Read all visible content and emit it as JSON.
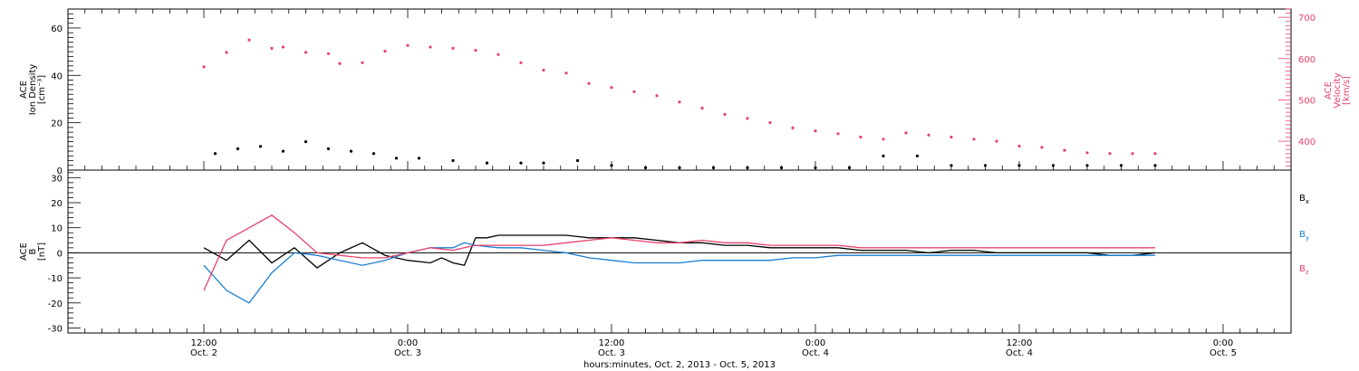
{
  "chart_data": [
    {
      "type": "scatter",
      "panel": "top",
      "ylabel_lines": [
        "ACE",
        "Ion Density",
        "[cm⁻³]"
      ],
      "ylim": [
        0,
        68
      ],
      "yticks": [
        "0",
        "20",
        "40",
        "60"
      ],
      "y2label_lines": [
        "ACE",
        "Velocity",
        "[km/s]"
      ],
      "y2lim": [
        330,
        720
      ],
      "y2ticks": [
        "400",
        "500",
        "600",
        "700"
      ],
      "series": [
        {
          "name": "Ion Density",
          "axis": "left",
          "color": "#000000",
          "x": [
            2,
            6,
            10,
            14,
            18,
            22,
            26,
            30,
            34,
            38,
            44,
            50,
            56,
            60,
            66,
            72,
            78,
            84,
            90,
            96,
            102,
            108,
            114,
            120,
            126,
            132,
            138,
            144,
            150,
            156,
            162,
            168
          ],
          "y": [
            7,
            9,
            10,
            8,
            12,
            9,
            8,
            7,
            5,
            5,
            4,
            3,
            3,
            3,
            4,
            2,
            1,
            1,
            1,
            1,
            1,
            1,
            1,
            6,
            6,
            2,
            2,
            2,
            2,
            2,
            2,
            2
          ]
        },
        {
          "name": "Velocity",
          "axis": "right",
          "color": "#e8426a",
          "x": [
            0,
            4,
            8,
            12,
            14,
            18,
            22,
            24,
            28,
            32,
            36,
            40,
            44,
            48,
            52,
            56,
            60,
            64,
            68,
            72,
            76,
            80,
            84,
            88,
            92,
            96,
            100,
            104,
            108,
            112,
            116,
            120,
            124,
            128,
            132,
            136,
            140,
            144,
            148,
            152,
            156,
            160,
            164,
            168
          ],
          "y": [
            580,
            615,
            645,
            625,
            628,
            615,
            612,
            588,
            590,
            618,
            632,
            628,
            625,
            620,
            610,
            590,
            572,
            565,
            540,
            530,
            520,
            510,
            495,
            480,
            465,
            455,
            445,
            432,
            425,
            418,
            410,
            405,
            420,
            415,
            410,
            405,
            400,
            388,
            385,
            378,
            372,
            370,
            370,
            370
          ]
        }
      ]
    },
    {
      "type": "line",
      "panel": "bottom",
      "ylabel_lines": [
        "ACE",
        "B",
        "[nT]"
      ],
      "ylim": [
        -32,
        33
      ],
      "yticks": [
        "-30",
        "-20",
        "-10",
        "0",
        "10",
        "20",
        "30"
      ],
      "zero_line": true,
      "series": [
        {
          "name": "Bx",
          "label": "B",
          "sub": "x",
          "color": "#000000",
          "x": [
            0,
            4,
            8,
            12,
            16,
            20,
            24,
            28,
            32,
            36,
            40,
            42,
            44,
            46,
            48,
            50,
            52,
            56,
            60,
            64,
            68,
            72,
            76,
            80,
            84,
            88,
            92,
            96,
            100,
            104,
            108,
            112,
            116,
            120,
            124,
            128,
            132,
            136,
            140,
            144,
            148,
            152,
            156,
            160,
            164,
            168
          ],
          "y": [
            2,
            -3,
            5,
            -4,
            2,
            -6,
            0,
            4,
            -1,
            -3,
            -4,
            -2,
            -4,
            -5,
            6,
            6,
            7,
            7,
            7,
            7,
            6,
            6,
            6,
            5,
            4,
            4,
            3,
            3,
            2,
            2,
            2,
            2,
            1,
            1,
            1,
            0,
            1,
            1,
            0,
            0,
            0,
            0,
            0,
            -1,
            -1,
            0
          ]
        },
        {
          "name": "By",
          "label": "B",
          "sub": "y",
          "color": "#1a7fd4",
          "x": [
            0,
            4,
            8,
            12,
            16,
            20,
            24,
            28,
            32,
            36,
            40,
            44,
            46,
            48,
            52,
            56,
            60,
            64,
            68,
            72,
            76,
            80,
            84,
            88,
            92,
            96,
            100,
            104,
            108,
            112,
            116,
            120,
            124,
            128,
            132,
            136,
            140,
            144,
            148,
            152,
            156,
            160,
            164,
            168
          ],
          "y": [
            -5,
            -15,
            -20,
            -8,
            0,
            -1,
            -3,
            -5,
            -3,
            0,
            2,
            2,
            4,
            3,
            2,
            2,
            1,
            0,
            -2,
            -3,
            -4,
            -4,
            -4,
            -3,
            -3,
            -3,
            -3,
            -2,
            -2,
            -1,
            -1,
            -1,
            -1,
            -1,
            -1,
            -1,
            -1,
            -1,
            -1,
            -1,
            -1,
            -1,
            -1,
            -1
          ]
        },
        {
          "name": "Bz",
          "label": "B",
          "sub": "z",
          "color": "#e8426a",
          "x": [
            0,
            4,
            8,
            12,
            16,
            20,
            24,
            28,
            32,
            36,
            40,
            44,
            46,
            48,
            52,
            56,
            60,
            64,
            68,
            72,
            76,
            80,
            84,
            88,
            92,
            96,
            100,
            104,
            108,
            112,
            116,
            120,
            124,
            128,
            132,
            136,
            140,
            144,
            148,
            152,
            156,
            160,
            164,
            168
          ],
          "y": [
            -15,
            5,
            10,
            15,
            8,
            0,
            -1,
            -2,
            -2,
            0,
            2,
            1,
            2,
            3,
            3,
            3,
            3,
            4,
            5,
            6,
            5,
            4,
            4,
            5,
            4,
            4,
            3,
            3,
            3,
            3,
            2,
            2,
            2,
            2,
            2,
            2,
            2,
            2,
            2,
            2,
            2,
            2,
            2,
            2
          ]
        }
      ]
    }
  ],
  "x_axis": {
    "xlim": [
      -24,
      192
    ],
    "major_ticks": [
      {
        "x": 0,
        "line1": "12:00",
        "line2": "Oct. 2"
      },
      {
        "x": 36,
        "line1": "0:00",
        "line2": "Oct. 3"
      },
      {
        "x": 72,
        "line1": "12:00",
        "line2": "Oct. 3"
      },
      {
        "x": 108,
        "line1": "0:00",
        "line2": "Oct. 4"
      },
      {
        "x": 144,
        "line1": "12:00",
        "line2": "Oct. 4"
      },
      {
        "x": 180,
        "line1": "0:00",
        "line2": "Oct. 5"
      }
    ],
    "minor_step": 3,
    "title": "hours:minutes, Oct.  2, 2013 - Oct.  5, 2013"
  }
}
